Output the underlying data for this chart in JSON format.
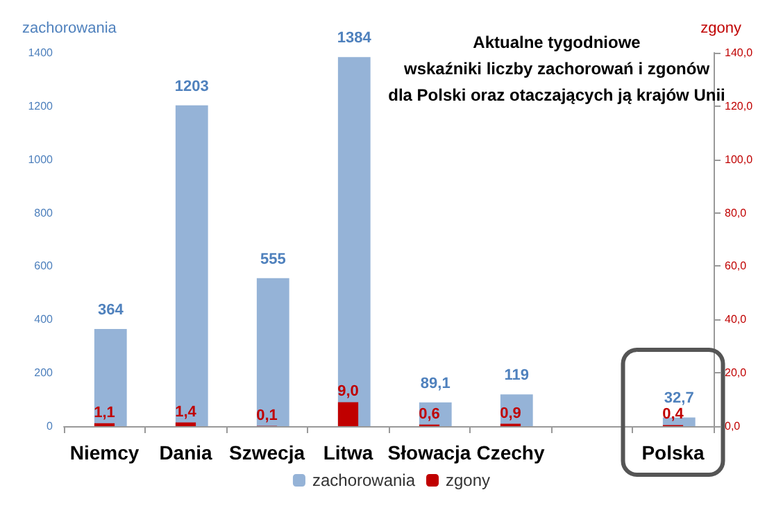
{
  "chart_data": {
    "type": "bar",
    "title": "Aktualne tygodniowe\nwskaźniki liczby zachorowań i zgonów\ndla Polski oraz otaczających ją krajów Unii",
    "ylabel": "zachorowania",
    "y2label": "zgony",
    "categories": [
      "Niemcy",
      "Dania",
      "Szwecja",
      "Litwa",
      "Słowacja",
      "Czechy",
      null,
      "Polska"
    ],
    "series": [
      {
        "name": "zachorowania",
        "color": "#95b3d7",
        "values": [
          364,
          1203,
          555,
          1384,
          89.1,
          119,
          null,
          32.7
        ],
        "value_labels": [
          "364",
          "1203",
          "555",
          "1384",
          "89,1",
          "119",
          null,
          "32,7"
        ]
      },
      {
        "name": "zgony",
        "color": "#c00000",
        "axis": "y2",
        "values": [
          1.1,
          1.4,
          0.1,
          9.0,
          0.6,
          0.9,
          null,
          0.4
        ],
        "value_labels": [
          "1,1",
          "1,4",
          "0,1",
          "9,0",
          "0,6",
          "0,9",
          null,
          "0,4"
        ]
      }
    ],
    "ylim": [
      0,
      1400
    ],
    "yticks": [
      0,
      200,
      400,
      600,
      800,
      1000,
      1200,
      1400
    ],
    "y2lim": [
      0,
      140
    ],
    "y2ticks": [
      {
        "value": 0,
        "label": "0,0"
      },
      {
        "value": 20,
        "label": "20,0"
      },
      {
        "value": 40,
        "label": "40,0"
      },
      {
        "value": 60,
        "label": "60,0"
      },
      {
        "value": 80,
        "label": "80,0"
      },
      {
        "value": 100,
        "label": "100,0"
      },
      {
        "value": 120,
        "label": "120,0"
      },
      {
        "value": 140,
        "label": "140,0"
      }
    ],
    "grid": false,
    "legend": "bottom"
  }
}
